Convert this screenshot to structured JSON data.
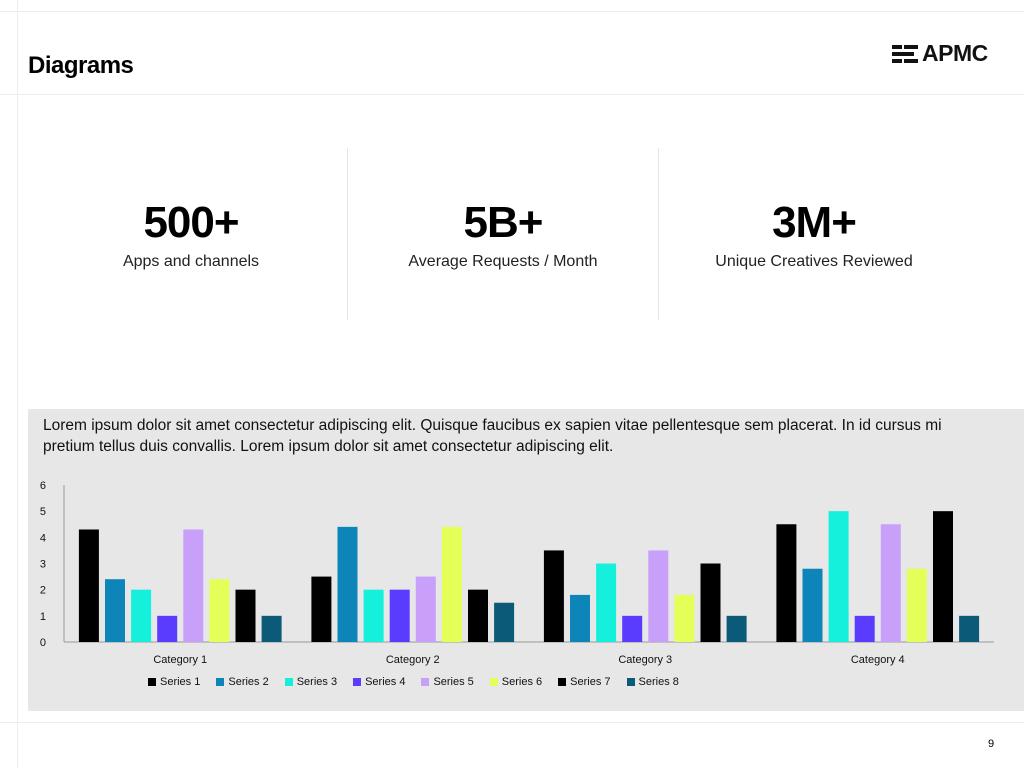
{
  "page": {
    "title": "Diagrams",
    "page_number": "9"
  },
  "logo": {
    "text": "APMC",
    "icon": "stacked-bars-logo-icon"
  },
  "stats": [
    {
      "value": "500+",
      "label": "Apps and channels"
    },
    {
      "value": "5B+",
      "label": "Average Requests / Month"
    },
    {
      "value": "3M+",
      "label": "Unique Creatives Reviewed"
    }
  ],
  "panel": {
    "text": "Lorem ipsum dolor sit amet consectetur adipiscing elit. Quisque faucibus ex sapien vitae pellentesque sem placerat. In id cursus mi pretium tellus duis convallis. Lorem ipsum dolor sit amet consectetur adipiscing elit."
  },
  "chart_data": {
    "type": "bar",
    "title": "",
    "xlabel": "",
    "ylabel": "",
    "ylim": [
      0,
      6
    ],
    "yticks": [
      0,
      1,
      2,
      3,
      4,
      5,
      6
    ],
    "grid": false,
    "legend_position": "bottom",
    "categories": [
      "Category 1",
      "Category 2",
      "Category 3",
      "Category 4"
    ],
    "series": [
      {
        "name": "Series 1",
        "color": "#000000",
        "values": [
          4.3,
          2.5,
          3.5,
          4.5
        ]
      },
      {
        "name": "Series 2",
        "color": "#0e85b8",
        "values": [
          2.4,
          4.4,
          1.8,
          2.8
        ]
      },
      {
        "name": "Series 3",
        "color": "#14f0dc",
        "values": [
          2.0,
          2.0,
          3.0,
          5.0
        ]
      },
      {
        "name": "Series 4",
        "color": "#5a3cff",
        "values": [
          1.0,
          2.0,
          1.0,
          1.0
        ]
      },
      {
        "name": "Series 5",
        "color": "#c8a0fa",
        "values": [
          4.3,
          2.5,
          3.5,
          4.5
        ]
      },
      {
        "name": "Series 6",
        "color": "#e4ff57",
        "values": [
          2.4,
          4.4,
          1.8,
          2.8
        ]
      },
      {
        "name": "Series 7",
        "color": "#000000",
        "values": [
          2.0,
          2.0,
          3.0,
          5.0
        ]
      },
      {
        "name": "Series 8",
        "color": "#0b5a78",
        "values": [
          1.0,
          1.5,
          1.0,
          1.0
        ]
      }
    ]
  }
}
